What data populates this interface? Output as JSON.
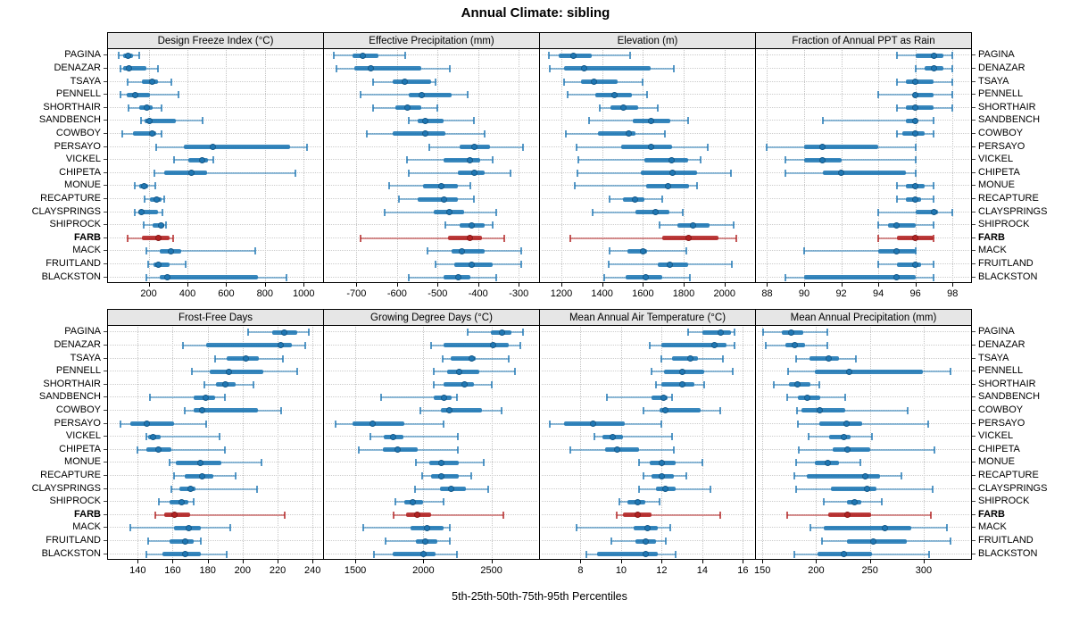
{
  "title": "Annual Climate: sibling",
  "footer": "5th-25th-50th-75th-95th Percentiles",
  "colors": {
    "series_blue": "#1f77b4",
    "series_blue_light": "rgba(31,119,180,0.5)",
    "highlight_red": "#b22222",
    "highlight_red_light": "rgba(178,34,34,0.5)",
    "strip_bg": "#e6e6e6",
    "grid": "#c8c8c8"
  },
  "chart_data": {
    "type": "dotplot-percentile-trellis",
    "title": "Annual Climate: sibling",
    "xlabel": "5th-25th-50th-75th-95th Percentiles",
    "legend": "none",
    "grid": "dotted",
    "percentiles_per_value": [
      5,
      25,
      50,
      75,
      95
    ],
    "stations": [
      "PAGINA",
      "DENAZAR",
      "TSAYA",
      "PENNELL",
      "SHORTHAIR",
      "SANDBENCH",
      "COWBOY",
      "PERSAYO",
      "VICKEL",
      "CHIPETA",
      "MONUE",
      "RECAPTURE",
      "CLAYSPRINGS",
      "SHIPROCK",
      "FARB",
      "MACK",
      "FRUITLAND",
      "BLACKSTON"
    ],
    "highlight_station": "FARB",
    "layout": {
      "rows": 2,
      "cols": 4
    },
    "panels": [
      {
        "title": "Design Freeze Index (°C)",
        "row": 0,
        "col": 0,
        "xlim": [
          -10,
          1100
        ],
        "ticks": [
          200,
          400,
          600,
          800,
          1000
        ],
        "values": [
          [
            45,
            70,
            95,
            120,
            150
          ],
          [
            55,
            70,
            100,
            190,
            250
          ],
          [
            90,
            165,
            220,
            250,
            315
          ],
          [
            55,
            85,
            130,
            205,
            355
          ],
          [
            95,
            150,
            190,
            220,
            265
          ],
          [
            160,
            180,
            205,
            340,
            480
          ],
          [
            65,
            120,
            220,
            240,
            265
          ],
          [
            240,
            380,
            530,
            930,
            1015
          ],
          [
            330,
            405,
            475,
            505,
            535
          ],
          [
            230,
            280,
            420,
            500,
            955
          ],
          [
            130,
            150,
            175,
            195,
            235
          ],
          [
            180,
            205,
            240,
            265,
            280
          ],
          [
            130,
            145,
            165,
            250,
            270
          ],
          [
            175,
            220,
            265,
            280,
            290
          ],
          [
            90,
            165,
            250,
            310,
            325
          ],
          [
            190,
            255,
            315,
            370,
            750
          ],
          [
            195,
            225,
            250,
            310,
            390
          ],
          [
            190,
            255,
            295,
            765,
            910
          ]
        ]
      },
      {
        "title": "Effective Precipitation (mm)",
        "row": 0,
        "col": 1,
        "xlim": [
          -780,
          -250
        ],
        "ticks": [
          -700,
          -600,
          -500,
          -400,
          -300
        ],
        "values": [
          [
            -755,
            -710,
            -685,
            -645,
            -580
          ],
          [
            -750,
            -705,
            -665,
            -540,
            -470
          ],
          [
            -660,
            -610,
            -580,
            -515,
            -505
          ],
          [
            -690,
            -570,
            -540,
            -465,
            -425
          ],
          [
            -660,
            -605,
            -575,
            -540,
            -500
          ],
          [
            -570,
            -550,
            -530,
            -485,
            -410
          ],
          [
            -675,
            -610,
            -530,
            -480,
            -385
          ],
          [
            -520,
            -445,
            -410,
            -370,
            -290
          ],
          [
            -575,
            -485,
            -420,
            -395,
            -365
          ],
          [
            -570,
            -450,
            -410,
            -385,
            -320
          ],
          [
            -620,
            -535,
            -490,
            -450,
            -420
          ],
          [
            -595,
            -550,
            -485,
            -450,
            -410
          ],
          [
            -630,
            -510,
            -470,
            -435,
            -355
          ],
          [
            -480,
            -445,
            -415,
            -385,
            -365
          ],
          [
            -690,
            -475,
            -420,
            -390,
            -335
          ],
          [
            -525,
            -465,
            -440,
            -385,
            -295
          ],
          [
            -505,
            -460,
            -415,
            -365,
            -295
          ],
          [
            -570,
            -485,
            -450,
            -420,
            -355
          ]
        ]
      },
      {
        "title": "Elevation (m)",
        "row": 0,
        "col": 2,
        "xlim": [
          1095,
          2150
        ],
        "ticks": [
          1200,
          1400,
          1600,
          1800,
          2000
        ],
        "values": [
          [
            1140,
            1185,
            1260,
            1350,
            1535
          ],
          [
            1145,
            1215,
            1310,
            1640,
            1750
          ],
          [
            1215,
            1295,
            1360,
            1475,
            1600
          ],
          [
            1230,
            1365,
            1460,
            1545,
            1620
          ],
          [
            1390,
            1440,
            1505,
            1575,
            1675
          ],
          [
            1335,
            1550,
            1640,
            1735,
            1820
          ],
          [
            1220,
            1380,
            1530,
            1565,
            1710
          ],
          [
            1275,
            1495,
            1640,
            1745,
            1920
          ],
          [
            1285,
            1605,
            1740,
            1820,
            1885
          ],
          [
            1280,
            1590,
            1745,
            1865,
            2030
          ],
          [
            1265,
            1615,
            1725,
            1825,
            1865
          ],
          [
            1435,
            1500,
            1560,
            1605,
            1695
          ],
          [
            1355,
            1565,
            1660,
            1730,
            1795
          ],
          [
            1680,
            1770,
            1845,
            1925,
            2045
          ],
          [
            1245,
            1695,
            1825,
            1970,
            2060
          ],
          [
            1435,
            1525,
            1600,
            1620,
            1815
          ],
          [
            1430,
            1675,
            1730,
            1820,
            2035
          ],
          [
            1410,
            1515,
            1615,
            1695,
            1830
          ]
        ]
      },
      {
        "title": "Fraction of Annual PPT as Rain",
        "row": 0,
        "col": 3,
        "xlim": [
          87.4,
          99.0
        ],
        "ticks": [
          88,
          90,
          92,
          94,
          96,
          98
        ],
        "values": [
          [
            95,
            96,
            97,
            97.5,
            98
          ],
          [
            96,
            96.5,
            97,
            97.5,
            98
          ],
          [
            95,
            95.5,
            96,
            97,
            98
          ],
          [
            94,
            96,
            96,
            97,
            98
          ],
          [
            95,
            95.5,
            96,
            97,
            98
          ],
          [
            91,
            95.5,
            96,
            96,
            97
          ],
          [
            95,
            95.3,
            96,
            96.5,
            97
          ],
          [
            88,
            90,
            91,
            94,
            96
          ],
          [
            89,
            90,
            91,
            92,
            96
          ],
          [
            89,
            91,
            92,
            95.5,
            96
          ],
          [
            95,
            95.5,
            96,
            96.5,
            97
          ],
          [
            95,
            95.5,
            96,
            96.3,
            97
          ],
          [
            94,
            96,
            97,
            97.2,
            98
          ],
          [
            94,
            94.5,
            95,
            96,
            97
          ],
          [
            94,
            95,
            96,
            97,
            97
          ],
          [
            90,
            94,
            95,
            96,
            96
          ],
          [
            94,
            95,
            96,
            96.3,
            97
          ],
          [
            89,
            90,
            95,
            96,
            97
          ]
        ]
      },
      {
        "title": "Frost-Free Days",
        "row": 1,
        "col": 0,
        "xlim": [
          123,
          246
        ],
        "ticks": [
          140,
          160,
          180,
          200,
          220,
          240
        ],
        "values": [
          [
            203,
            217,
            224,
            231,
            238
          ],
          [
            166,
            179,
            222,
            228,
            236
          ],
          [
            184,
            191,
            202,
            209,
            223
          ],
          [
            171,
            181,
            192,
            212,
            231
          ],
          [
            178,
            185,
            190,
            196,
            206
          ],
          [
            147,
            172,
            179,
            184,
            190
          ],
          [
            167,
            172,
            177,
            209,
            222
          ],
          [
            130,
            136,
            145,
            161,
            179
          ],
          [
            145,
            146,
            149,
            153,
            187
          ],
          [
            140,
            145,
            152,
            159,
            190
          ],
          [
            158,
            162,
            176,
            188,
            211
          ],
          [
            161,
            167,
            177,
            183,
            196
          ],
          [
            159,
            164,
            170,
            173,
            208
          ],
          [
            152,
            158,
            165,
            169,
            172
          ],
          [
            150,
            155,
            161,
            170,
            224
          ],
          [
            136,
            161,
            169,
            176,
            193
          ],
          [
            146,
            158,
            167,
            172,
            176
          ],
          [
            145,
            154,
            167,
            176,
            191
          ]
        ]
      },
      {
        "title": "Growing Degree Days (°C)",
        "row": 1,
        "col": 1,
        "xlim": [
          1270,
          2850
        ],
        "ticks": [
          1500,
          2000,
          2500
        ],
        "values": [
          [
            2325,
            2495,
            2580,
            2645,
            2735
          ],
          [
            2055,
            2150,
            2510,
            2625,
            2715
          ],
          [
            2140,
            2200,
            2355,
            2385,
            2625
          ],
          [
            2075,
            2175,
            2260,
            2410,
            2670
          ],
          [
            2075,
            2150,
            2300,
            2370,
            2500
          ],
          [
            1690,
            2075,
            2150,
            2210,
            2245
          ],
          [
            1980,
            2130,
            2190,
            2430,
            2575
          ],
          [
            1355,
            1480,
            1625,
            1860,
            2150
          ],
          [
            1610,
            1710,
            1780,
            1855,
            2255
          ],
          [
            1525,
            1705,
            1810,
            1960,
            2255
          ],
          [
            1945,
            2045,
            2130,
            2260,
            2445
          ],
          [
            1990,
            2055,
            2135,
            2260,
            2350
          ],
          [
            1940,
            2125,
            2205,
            2310,
            2475
          ],
          [
            1795,
            1860,
            1925,
            2000,
            2150
          ],
          [
            1780,
            1870,
            1955,
            2060,
            2590
          ],
          [
            1560,
            1905,
            2030,
            2150,
            2195
          ],
          [
            1720,
            1945,
            2015,
            2100,
            2195
          ],
          [
            1640,
            1775,
            2000,
            2090,
            2250
          ]
        ]
      },
      {
        "title": "Mean Annual Air Temperature (°C)",
        "row": 1,
        "col": 2,
        "xlim": [
          6,
          16.6
        ],
        "ticks": [
          8,
          10,
          12,
          14,
          16
        ],
        "values": [
          [
            13.3,
            14.0,
            14.9,
            15.4,
            15.6
          ],
          [
            11.4,
            12.0,
            14.6,
            15.2,
            15.6
          ],
          [
            12.0,
            12.5,
            13.4,
            13.8,
            15.0
          ],
          [
            11.5,
            12.1,
            13.0,
            14.1,
            15.5
          ],
          [
            11.7,
            12.0,
            13.0,
            13.6,
            14.1
          ],
          [
            9.3,
            11.5,
            12.1,
            12.3,
            12.5
          ],
          [
            11.1,
            11.9,
            12.2,
            13.9,
            14.9
          ],
          [
            6.5,
            7.2,
            8.6,
            10.2,
            12.0
          ],
          [
            8.7,
            9.1,
            9.6,
            10.1,
            12.5
          ],
          [
            7.5,
            9.2,
            9.8,
            10.9,
            12.6
          ],
          [
            10.9,
            11.4,
            12.0,
            12.7,
            14.0
          ],
          [
            11.1,
            11.5,
            12.0,
            12.6,
            13.2
          ],
          [
            10.9,
            11.7,
            12.2,
            12.7,
            14.4
          ],
          [
            9.9,
            10.3,
            10.8,
            11.2,
            11.9
          ],
          [
            9.8,
            10.1,
            10.8,
            11.5,
            14.9
          ],
          [
            7.8,
            10.6,
            11.3,
            11.8,
            12.4
          ],
          [
            9.5,
            10.7,
            11.2,
            11.7,
            12.2
          ],
          [
            8.3,
            8.8,
            11.2,
            11.8,
            12.7
          ]
        ]
      },
      {
        "title": "Mean Annual Precipitation (mm)",
        "row": 1,
        "col": 3,
        "xlim": [
          144,
          344
        ],
        "ticks": [
          150,
          200,
          250,
          300
        ],
        "values": [
          [
            151,
            168,
            177,
            188,
            210
          ],
          [
            153,
            171,
            180,
            190,
            210
          ],
          [
            181,
            194,
            212,
            221,
            237
          ],
          [
            174,
            199,
            231,
            299,
            325
          ],
          [
            161,
            175,
            183,
            195,
            203
          ],
          [
            173,
            183,
            192,
            204,
            227
          ],
          [
            182,
            186,
            203,
            227,
            285
          ],
          [
            183,
            203,
            228,
            243,
            304
          ],
          [
            193,
            212,
            226,
            232,
            252
          ],
          [
            184,
            215,
            229,
            250,
            310
          ],
          [
            181,
            199,
            211,
            221,
            241
          ],
          [
            180,
            191,
            246,
            259,
            279
          ],
          [
            181,
            214,
            247,
            256,
            308
          ],
          [
            207,
            229,
            236,
            242,
            261
          ],
          [
            173,
            211,
            229,
            251,
            307
          ],
          [
            195,
            207,
            264,
            288,
            322
          ],
          [
            205,
            229,
            253,
            284,
            325
          ],
          [
            180,
            201,
            226,
            252,
            305
          ]
        ]
      }
    ]
  }
}
